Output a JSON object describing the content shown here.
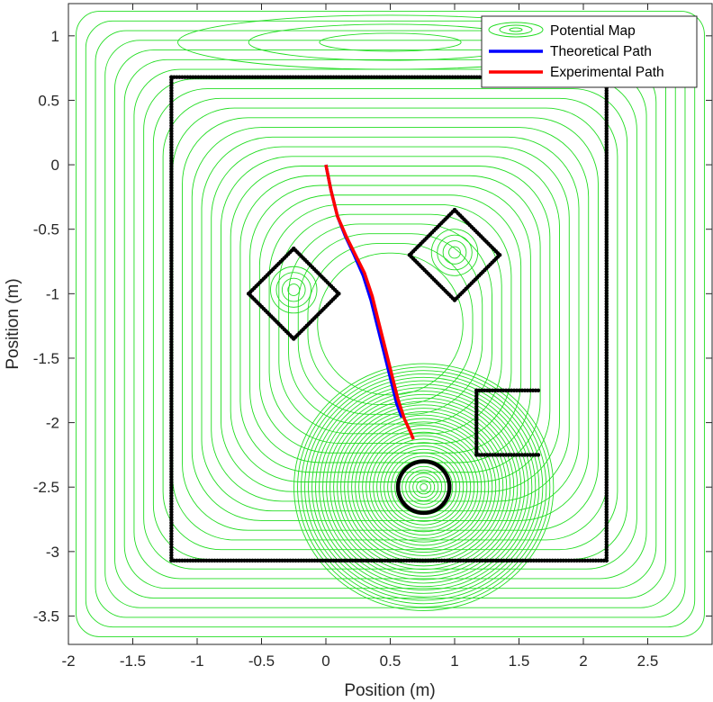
{
  "chart_data": {
    "type": "line",
    "xlabel": "Position (m)",
    "ylabel": "Position (m)",
    "xlim": [
      -2.0,
      3.0
    ],
    "ylim": [
      -3.72,
      1.25
    ],
    "x_ticks": [
      "-2",
      "-1.5",
      "-1",
      "-0.5",
      "0",
      "0.5",
      "1",
      "1.5",
      "2",
      "2.5"
    ],
    "x_tick_values": [
      -2,
      -1.5,
      -1,
      -0.5,
      0,
      0.5,
      1,
      1.5,
      2,
      2.5
    ],
    "y_ticks": [
      "1",
      "0.5",
      "0",
      "-0.5",
      "-1",
      "-1.5",
      "-2",
      "-2.5",
      "-3",
      "-3.5"
    ],
    "y_tick_values": [
      1,
      0.5,
      0,
      -0.5,
      -1,
      -1.5,
      -2,
      -2.5,
      -3,
      -3.5
    ],
    "grid": false,
    "legend_position": "top-right",
    "colors": {
      "potential": "#22dd22",
      "theoretical": "#0000ff",
      "experimental": "#ff0000",
      "obstacles": "#000000"
    },
    "series": [
      {
        "name": "Potential Map",
        "kind": "contour"
      },
      {
        "name": "Theoretical Path",
        "x": [
          0.0,
          0.04,
          0.09,
          0.15,
          0.22,
          0.29,
          0.35,
          0.4,
          0.45,
          0.5,
          0.55,
          0.59
        ],
        "y": [
          0.0,
          -0.2,
          -0.4,
          -0.55,
          -0.7,
          -0.86,
          -1.05,
          -1.25,
          -1.45,
          -1.65,
          -1.85,
          -1.96
        ]
      },
      {
        "name": "Experimental Path",
        "x": [
          0.0,
          0.04,
          0.09,
          0.16,
          0.23,
          0.3,
          0.36,
          0.41,
          0.46,
          0.51,
          0.56,
          0.61,
          0.66,
          0.68
        ],
        "y": [
          0.0,
          -0.2,
          -0.4,
          -0.56,
          -0.7,
          -0.84,
          -1.02,
          -1.22,
          -1.42,
          -1.62,
          -1.82,
          -1.97,
          -2.08,
          -2.13
        ]
      }
    ],
    "obstacles": {
      "walls": [
        [
          -1.2,
          0.68
        ],
        [
          2.18,
          0.68
        ],
        [
          2.18,
          -3.07
        ],
        [
          -1.2,
          -3.07
        ]
      ],
      "diamond_left": [
        [
          -0.25,
          -0.65
        ],
        [
          0.1,
          -1.0
        ],
        [
          -0.25,
          -1.35
        ],
        [
          -0.6,
          -1.0
        ]
      ],
      "diamond_right": [
        [
          1.0,
          -0.35
        ],
        [
          1.35,
          -0.7
        ],
        [
          1.0,
          -1.05
        ],
        [
          0.65,
          -0.7
        ]
      ],
      "bracket": [
        [
          1.65,
          -1.75
        ],
        [
          1.17,
          -1.75
        ],
        [
          1.17,
          -2.25
        ],
        [
          1.65,
          -2.25
        ]
      ],
      "circle": {
        "cx": 0.76,
        "cy": -2.5,
        "r": 0.2
      }
    }
  }
}
